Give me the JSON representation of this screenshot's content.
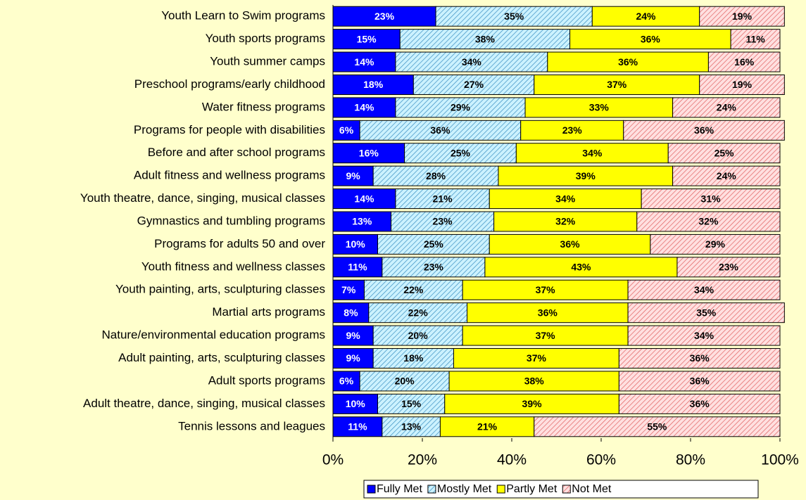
{
  "chart_data": {
    "type": "stacked_bar_horizontal",
    "categories": [
      "Youth Learn to Swim programs",
      "Youth sports programs",
      "Youth summer camps",
      "Preschool programs/early childhood",
      "Water fitness programs",
      "Programs for people with disabilities",
      "Before and after school programs",
      "Adult fitness and wellness programs",
      "Youth theatre, dance, singing, musical classes",
      "Gymnastics and tumbling programs",
      "Programs for adults 50 and over",
      "Youth fitness and wellness classes",
      "Youth painting, arts, sculpturing classes",
      "Martial arts programs",
      "Nature/environmental education programs",
      "Adult painting, arts, sculpturing classes",
      "Adult sports programs",
      "Adult theatre, dance, singing, musical classes",
      "Tennis lessons and leagues"
    ],
    "series": [
      {
        "name": "Fully Met",
        "color": "#0000ff",
        "label_color": "#ffffff",
        "values": [
          23,
          15,
          14,
          18,
          14,
          6,
          16,
          9,
          14,
          13,
          10,
          11,
          7,
          8,
          9,
          9,
          6,
          10,
          11
        ],
        "value_labels": [
          "23%",
          "15%",
          "14%",
          "18%",
          "14%",
          "6%",
          "16%",
          "9%",
          "14%",
          "13%",
          "10%",
          "11%",
          "7%",
          "8%",
          "9%",
          "9%",
          "6%",
          "10%",
          "11%"
        ]
      },
      {
        "name": "Mostly Met",
        "color": "#ccf2ff",
        "hatch": "#3a8fc0",
        "label_color": "#000000",
        "values": [
          35,
          38,
          34,
          27,
          29,
          36,
          25,
          28,
          21,
          23,
          25,
          23,
          22,
          22,
          20,
          18,
          20,
          15,
          13
        ],
        "value_labels": [
          "35%",
          "38%",
          "34%",
          "27%",
          "29%",
          "36%",
          "25%",
          "28%",
          "21%",
          "23%",
          "25%",
          "23%",
          "22%",
          "22%",
          "20%",
          "18%",
          "20%",
          "15%",
          "13%"
        ]
      },
      {
        "name": "Partly Met",
        "color": "#ffff00",
        "label_color": "#000000",
        "values": [
          24,
          36,
          36,
          37,
          33,
          23,
          34,
          39,
          34,
          32,
          36,
          43,
          37,
          36,
          37,
          37,
          38,
          39,
          21
        ],
        "value_labels": [
          "24%",
          "36%",
          "36%",
          "37%",
          "33%",
          "23%",
          "34%",
          "39%",
          "34%",
          "32%",
          "36%",
          "43%",
          "37%",
          "36%",
          "37%",
          "37%",
          "38%",
          "39%",
          "21%"
        ]
      },
      {
        "name": "Not Met",
        "color": "#ffe0e0",
        "hatch": "#e06060",
        "label_color": "#000000",
        "values": [
          19,
          11,
          16,
          19,
          24,
          36,
          25,
          24,
          31,
          32,
          29,
          23,
          34,
          35,
          34,
          36,
          36,
          36,
          55
        ],
        "value_labels": [
          "19%",
          "11%",
          "16%",
          "19%",
          "24%",
          "36%",
          "25%",
          "24%",
          "31%",
          "32%",
          "29%",
          "23%",
          "34%",
          "35%",
          "34%",
          "36%",
          "36%",
          "36%",
          "55%"
        ]
      }
    ],
    "xlim": [
      0,
      100
    ],
    "xticks": [
      {
        "value": 0,
        "label": "0%"
      },
      {
        "value": 20,
        "label": "20%"
      },
      {
        "value": 40,
        "label": "40%"
      },
      {
        "value": 60,
        "label": "60%"
      },
      {
        "value": 80,
        "label": "80%"
      },
      {
        "value": 100,
        "label": "100%"
      }
    ],
    "legend": "bottom"
  }
}
